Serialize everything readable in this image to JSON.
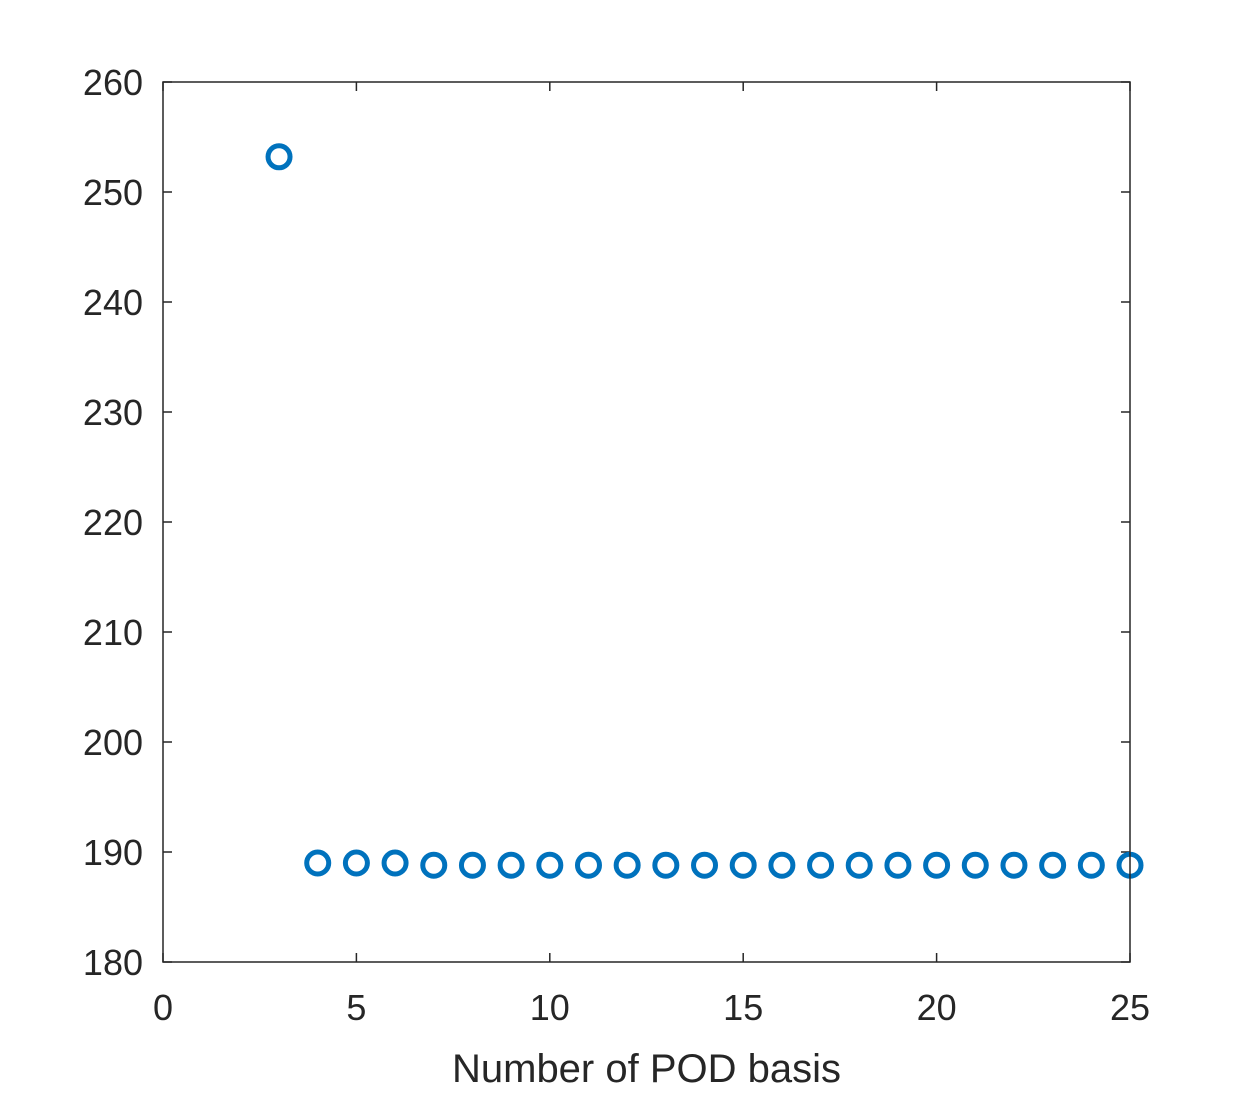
{
  "chart_data": {
    "type": "scatter",
    "title": "",
    "xlabel": "Number of POD basis",
    "ylabel": "",
    "xlim": [
      0,
      25
    ],
    "ylim": [
      180,
      260
    ],
    "xticks": [
      0,
      5,
      10,
      15,
      20,
      25
    ],
    "yticks": [
      180,
      190,
      200,
      210,
      220,
      230,
      240,
      250,
      260
    ],
    "grid": false,
    "marker": "open-circle",
    "series": [
      {
        "color": "#0072BD",
        "x": [
          3,
          4,
          5,
          6,
          7,
          8,
          9,
          10,
          11,
          12,
          13,
          14,
          15,
          16,
          17,
          18,
          19,
          20,
          21,
          22,
          23,
          24,
          25
        ],
        "y": [
          253.2,
          189.0,
          189.0,
          189.0,
          188.8,
          188.8,
          188.8,
          188.8,
          188.8,
          188.8,
          188.8,
          188.8,
          188.8,
          188.8,
          188.8,
          188.8,
          188.8,
          188.8,
          188.8,
          188.8,
          188.8,
          188.8,
          188.8
        ]
      }
    ]
  }
}
